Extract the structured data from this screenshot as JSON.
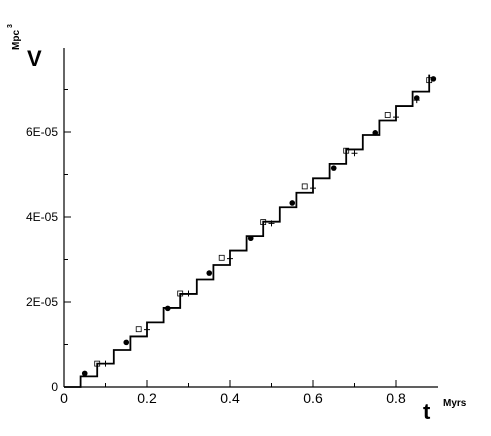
{
  "chart_data": {
    "type": "line",
    "y_label": "V",
    "y_unit": "Mpc",
    "y_unit_exponent": "3",
    "x_label": "t",
    "x_unit": "Myrs",
    "xlim": [
      0,
      0.9
    ],
    "ylim": [
      0,
      8e-05
    ],
    "xticks": [
      0,
      0.2,
      0.4,
      0.6,
      0.8
    ],
    "x_minor_ticks": [
      0.1,
      0.3,
      0.5,
      0.7
    ],
    "yticks": [
      0,
      {
        "value": 2e-05,
        "label": "2E-05"
      },
      {
        "value": 4e-05,
        "label": "4E-05"
      },
      {
        "value": 6e-05,
        "label": "6E-05"
      }
    ],
    "y_minor_ticks": [
      1e-05,
      3e-05,
      5e-05,
      7e-05
    ],
    "series": [
      {
        "style": "step",
        "color": "#000000",
        "x": [
          0,
          0.04,
          0.08,
          0.12,
          0.16,
          0.2,
          0.24,
          0.28,
          0.32,
          0.36,
          0.4,
          0.44,
          0.48,
          0.52,
          0.56,
          0.6,
          0.64,
          0.68,
          0.72,
          0.76,
          0.8,
          0.84,
          0.88
        ],
        "values": [
          0,
          2.5e-06,
          5.5e-06,
          8.7e-06,
          1.19e-05,
          1.52e-05,
          1.86e-05,
          2.19e-05,
          2.53e-05,
          2.87e-05,
          3.21e-05,
          3.55e-05,
          3.89e-05,
          4.23e-05,
          4.57e-05,
          4.91e-05,
          5.25e-05,
          5.59e-05,
          5.93e-05,
          6.27e-05,
          6.61e-05,
          6.95e-05,
          7.35e-05
        ]
      },
      {
        "style": "circle",
        "color": "#000000",
        "x": [
          0.05,
          0.15,
          0.25,
          0.35,
          0.45,
          0.55,
          0.65,
          0.75,
          0.85,
          0.89
        ],
        "values": [
          3.2e-06,
          1.05e-05,
          1.85e-05,
          2.68e-05,
          3.5e-05,
          4.33e-05,
          5.15e-05,
          5.98e-05,
          6.8e-05,
          7.25e-05
        ]
      },
      {
        "style": "square",
        "color": "#000000",
        "x": [
          0.08,
          0.18,
          0.28,
          0.38,
          0.48,
          0.58,
          0.68,
          0.78,
          0.88
        ],
        "values": [
          5.5e-06,
          1.36e-05,
          2.2e-05,
          3.04e-05,
          3.88e-05,
          4.72e-05,
          5.56e-05,
          6.4e-05,
          7.22e-05
        ]
      },
      {
        "style": "plus",
        "color": "#000000",
        "x": [
          0.1,
          0.2,
          0.3,
          0.4,
          0.5,
          0.6,
          0.7,
          0.8,
          0.85
        ],
        "values": [
          5.5e-06,
          1.35e-05,
          2.2e-05,
          3.02e-05,
          3.85e-05,
          4.68e-05,
          5.5e-05,
          6.35e-05,
          6.75e-05
        ]
      }
    ]
  }
}
